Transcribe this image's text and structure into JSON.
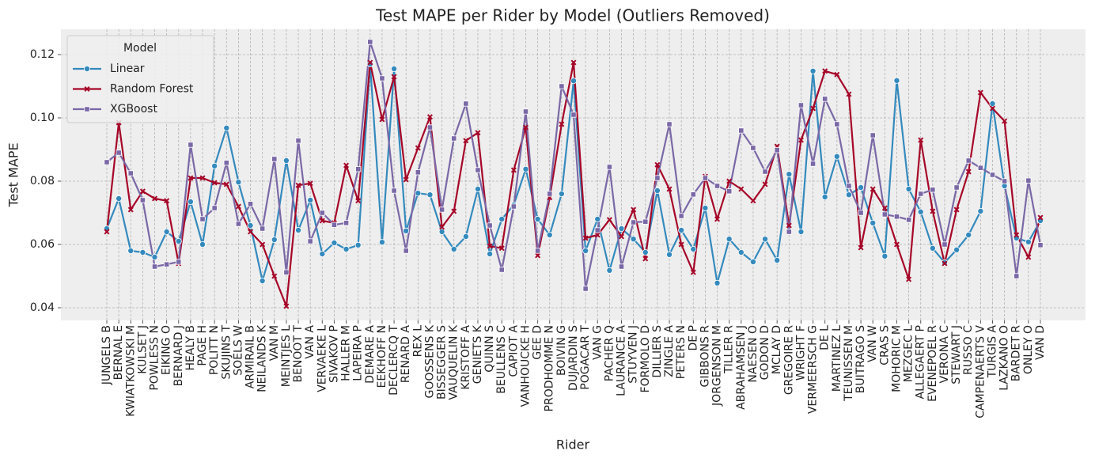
{
  "chart_data": {
    "type": "line",
    "title": "Test MAPE per Rider by Model (Outliers Removed)",
    "x_label": "Rider",
    "y_label": "Test MAPE",
    "legend_title": "Model",
    "legend": "upper left",
    "grid": true,
    "categories": [
      "JUNGELS B",
      "BERNAL E",
      "KWIATKOWSKI M",
      "KULSET J",
      "POWLESS N",
      "EIKING O",
      "BERNARD J",
      "HEALY B",
      "PAGE H",
      "POLITT N",
      "SKUJINS T",
      "SOELS W",
      "ARMIRAIL B",
      "NEILANDS K",
      "VAN M",
      "MEINTJES L",
      "BENOOT T",
      "VAN A",
      "VERVAEKE L",
      "SIVAKOV P",
      "HALLER M",
      "LAPEIRA P",
      "DEMARE A",
      "EEKHOFF N",
      "DECLERCQ T",
      "RENARD A",
      "REX L",
      "GOOSSENS K",
      "BISSEGGER S",
      "VAUQUELIN K",
      "KRISTOFF A",
      "GENIETS K",
      "QUINN S",
      "BEULLENS C",
      "CAPIOT A",
      "VANHOUCKE H",
      "GEE D",
      "PRODHOMME N",
      "BOIVIN G",
      "DUJARDIN S",
      "POGACAR T",
      "VAN G",
      "PACHER Q",
      "LAURANCE A",
      "STUYVEN J",
      "FORMOLO D",
      "DILLIER S",
      "ZINGLE A",
      "PETERS N",
      "DE P",
      "GIBBONS R",
      "JORGENSON M",
      "TILLER R",
      "ABRAHAMSEN J",
      "NAESEN O",
      "GODON D",
      "MCLAY D",
      "GREGOIRE R",
      "WRIGHT F",
      "VERMEERSCH G",
      "DE L",
      "MARTINEZ L",
      "TEUNISSEN M",
      "BUITRAGO S",
      "VAN W",
      "CRAS S",
      "MOHORIC M",
      "MEZGEC L",
      "ALLEGAERT P",
      "EVENEPOEL R",
      "VERONA C",
      "STEWART J",
      "RUSSO C",
      "CAMPENAERTS V",
      "TURGIS A",
      "LAZKANO O",
      "BARDET R",
      "ONLEY O",
      "VAN D"
    ],
    "series": [
      {
        "name": "Linear",
        "color": "#348abd",
        "values": [
          0.065,
          0.0745,
          0.058,
          0.0575,
          0.056,
          0.064,
          0.061,
          0.0735,
          0.06,
          0.0848,
          0.0968,
          0.0797,
          0.066,
          0.0485,
          0.0615,
          0.0865,
          0.0645,
          0.074,
          0.057,
          0.0605,
          0.0585,
          0.0598,
          0.117,
          0.0607,
          0.1155,
          0.0643,
          0.0762,
          0.0757,
          0.064,
          0.0585,
          0.0625,
          0.0775,
          0.057,
          0.068,
          0.0725,
          0.0838,
          0.068,
          0.063,
          0.076,
          0.1117,
          0.058,
          0.068,
          0.0518,
          0.065,
          0.0617,
          0.0575,
          0.077,
          0.0568,
          0.0645,
          0.0585,
          0.0715,
          0.0478,
          0.0617,
          0.0575,
          0.0545,
          0.0617,
          0.055,
          0.0822,
          0.064,
          0.1148,
          0.075,
          0.0878,
          0.0757,
          0.078,
          0.0668,
          0.0563,
          0.1118,
          0.0775,
          0.0703,
          0.0588,
          0.0543,
          0.0583,
          0.063,
          0.0705,
          0.1045,
          0.0785,
          0.062,
          0.0608,
          0.0675
        ]
      },
      {
        "name": "Random Forest",
        "color": "#a60628",
        "values": [
          0.064,
          0.0985,
          0.071,
          0.0768,
          0.0745,
          0.0738,
          0.054,
          0.081,
          0.081,
          0.0795,
          0.079,
          0.072,
          0.064,
          0.06,
          0.05,
          0.0405,
          0.0787,
          0.0793,
          0.0675,
          0.0668,
          0.085,
          0.0738,
          0.1175,
          0.0995,
          0.113,
          0.0805,
          0.0905,
          0.1003,
          0.0655,
          0.0705,
          0.0928,
          0.0953,
          0.0595,
          0.0588,
          0.0835,
          0.097,
          0.0565,
          0.0748,
          0.098,
          0.1175,
          0.062,
          0.063,
          0.0678,
          0.0625,
          0.071,
          0.0555,
          0.0852,
          0.0775,
          0.06,
          0.0512,
          0.0815,
          0.068,
          0.08,
          0.0775,
          0.0738,
          0.079,
          0.091,
          0.066,
          0.093,
          0.103,
          0.1148,
          0.1137,
          0.1075,
          0.059,
          0.0775,
          0.0715,
          0.06,
          0.049,
          0.093,
          0.0705,
          0.054,
          0.071,
          0.083,
          0.108,
          0.103,
          0.099,
          0.063,
          0.056,
          0.0685
        ]
      },
      {
        "name": "XGBoost",
        "color": "#7a68a6",
        "values": [
          0.086,
          0.089,
          0.0825,
          0.074,
          0.053,
          0.0537,
          0.0545,
          0.0915,
          0.068,
          0.0715,
          0.0858,
          0.0665,
          0.0728,
          0.065,
          0.087,
          0.0512,
          0.0928,
          0.061,
          0.07,
          0.0662,
          0.0668,
          0.0838,
          0.124,
          0.1125,
          0.077,
          0.058,
          0.0828,
          0.097,
          0.071,
          0.0935,
          0.1045,
          0.0835,
          0.066,
          0.052,
          0.072,
          0.102,
          0.058,
          0.076,
          0.11,
          0.101,
          0.046,
          0.0645,
          0.0845,
          0.053,
          0.067,
          0.0672,
          0.081,
          0.098,
          0.069,
          0.0758,
          0.081,
          0.0785,
          0.0768,
          0.096,
          0.0905,
          0.083,
          0.0898,
          0.064,
          0.104,
          0.0855,
          0.106,
          0.098,
          0.0785,
          0.07,
          0.0945,
          0.0695,
          0.0688,
          0.0678,
          0.076,
          0.0773,
          0.06,
          0.078,
          0.0865,
          0.0842,
          0.082,
          0.08,
          0.05,
          0.0802,
          0.0598
        ]
      }
    ],
    "ylim": [
      0.036,
      0.128
    ],
    "yticks": [
      0.04,
      0.06,
      0.08,
      {
        "value": 0.1,
        "label": "0.10"
      },
      0.12
    ]
  }
}
